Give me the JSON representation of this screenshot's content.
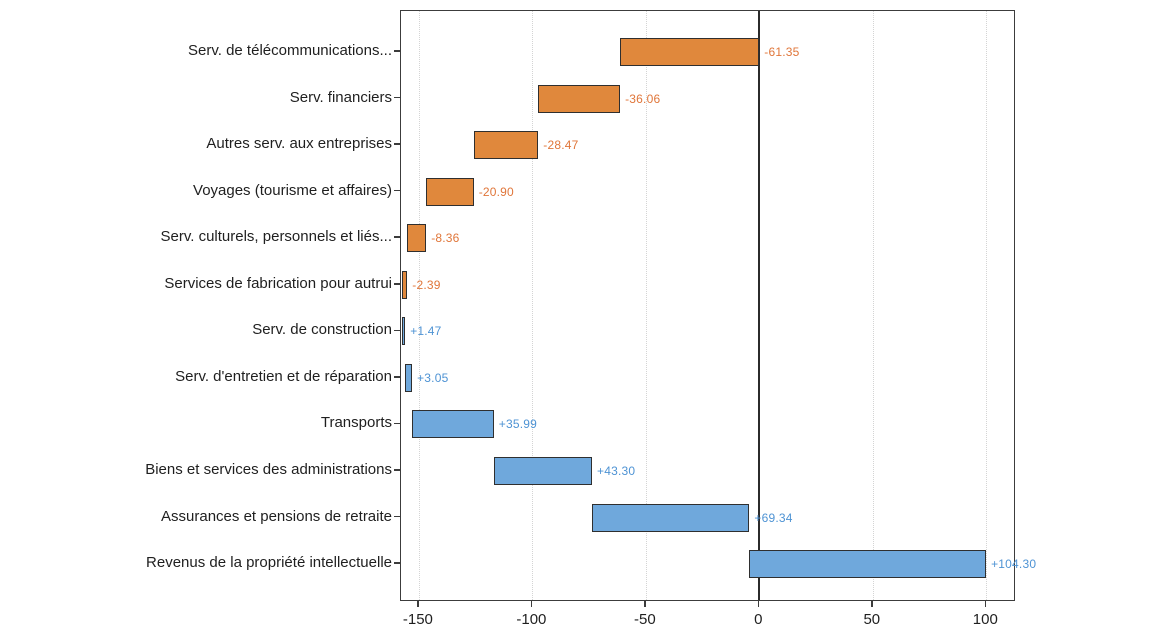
{
  "chart_data": {
    "type": "bar",
    "subtype": "horizontal-waterfall",
    "title": "",
    "xlabel": "",
    "ylabel": "",
    "legend": "none",
    "grid": "vertical-dotted",
    "zero_line": true,
    "categories": [
      "Serv. de télécommunications...",
      "Serv. financiers",
      "Autres serv. aux entreprises",
      "Voyages (tourisme et affaires)",
      "Serv. culturels, personnels et liés...",
      "Services de fabrication pour autrui",
      "Serv. de construction",
      "Serv. d'entretien et de réparation",
      "Transports",
      "Biens et services des administrations",
      "Assurances et pensions de retraite",
      "Revenus de la propriété intellectuelle"
    ],
    "values": [
      -61.35,
      -36.06,
      -28.47,
      -20.9,
      -8.36,
      -2.39,
      1.47,
      3.05,
      35.99,
      43.3,
      69.34,
      104.3
    ],
    "value_labels": [
      "-61.35",
      "-36.06",
      "-28.47",
      "-20.90",
      "-8.36",
      "-2.39",
      "+1.47",
      "+3.05",
      "+35.99",
      "+43.30",
      "+69.34",
      "+104.30"
    ],
    "waterfall_start": 0,
    "waterfall_end": 99.92,
    "x_tick_values": [
      -150,
      -100,
      -50,
      0,
      50,
      100
    ],
    "x_tick_labels": [
      "-150",
      "-100",
      "-50",
      "0",
      "50",
      "100"
    ],
    "xlim": [
      -157.9,
      113.1
    ],
    "colors": {
      "negative_fill": "#E0883C",
      "positive_fill": "#6FA8DC",
      "negative_label": "#E0763A",
      "positive_label": "#4E93D4",
      "bar_border": "#2F2F2F",
      "frame": "#3C3C3C",
      "zero_line": "#2B2B2B",
      "grid": "#D4D4D4",
      "text": "#1F1F1F"
    }
  }
}
